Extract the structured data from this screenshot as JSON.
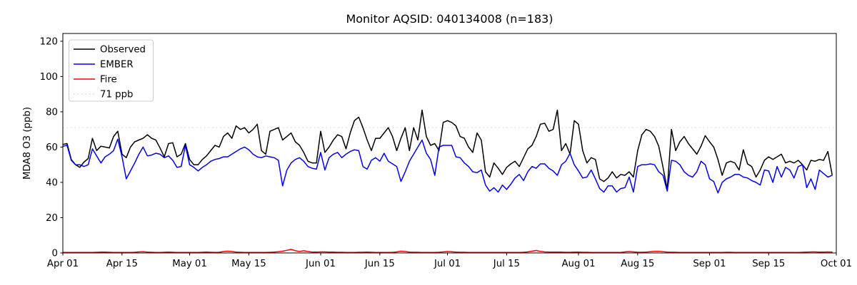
{
  "chart_data": {
    "type": "line",
    "title": "Monitor AQSID: 040134008 (n=183)",
    "xlabel": "",
    "ylabel": "MDA8 O3 (ppb)",
    "n_points": 183,
    "x_range_labels": [
      "Apr 01",
      "Oct 01"
    ],
    "ylim": [
      0,
      124.4
    ],
    "yticks": [
      0,
      20,
      40,
      60,
      80,
      100,
      120
    ],
    "xticks": [
      {
        "day": 1,
        "label": "Apr 01"
      },
      {
        "day": 15,
        "label": "Apr 15"
      },
      {
        "day": 31,
        "label": "May 01"
      },
      {
        "day": 45,
        "label": "May 15"
      },
      {
        "day": 62,
        "label": "Jun 01"
      },
      {
        "day": 76,
        "label": "Jun 15"
      },
      {
        "day": 92,
        "label": "Jul 01"
      },
      {
        "day": 106,
        "label": "Jul 15"
      },
      {
        "day": 123,
        "label": "Aug 01"
      },
      {
        "day": 137,
        "label": "Aug 15"
      },
      {
        "day": 154,
        "label": "Sep 01"
      },
      {
        "day": 168,
        "label": "Sep 15"
      },
      {
        "day": 184,
        "label": "Oct 01"
      }
    ],
    "grid": false,
    "legend_position": "upper left",
    "threshold": {
      "label": "71 ppb",
      "value": 71,
      "color": "#d3d3d3",
      "style": "dotted"
    },
    "series": [
      {
        "name": "Observed",
        "color": "#000000",
        "values": [
          61.5,
          62,
          53,
          50,
          48.5,
          51.5,
          53.5,
          65,
          58,
          60.5,
          60,
          59.5,
          66,
          69,
          56,
          54,
          60,
          63,
          64,
          65,
          67,
          65,
          64,
          59.5,
          54.5,
          62,
          62.5,
          54.5,
          56,
          62,
          53,
          50,
          50,
          53,
          55,
          58,
          61,
          60,
          66,
          68,
          65,
          72,
          70,
          71,
          68,
          70,
          73,
          58,
          56,
          69,
          70,
          71,
          64,
          66,
          68,
          63,
          61,
          57,
          52,
          51,
          51,
          69,
          57,
          60,
          64,
          67,
          66,
          59,
          68,
          75,
          77,
          71,
          64,
          58,
          65,
          65,
          68,
          71,
          66,
          58,
          65,
          71,
          58,
          71,
          64,
          81,
          66,
          61,
          62,
          58,
          74,
          75,
          74,
          72,
          66,
          65,
          60,
          57,
          68,
          64,
          46,
          43,
          51,
          48,
          44.5,
          48.5,
          50.5,
          52,
          49,
          54,
          59,
          61,
          66,
          73,
          73.5,
          69,
          70,
          81,
          58,
          62,
          56,
          75,
          73,
          58,
          51,
          54,
          53,
          42,
          40.5,
          42.5,
          46,
          42.5,
          44.5,
          44,
          46,
          43,
          58,
          67,
          70,
          69,
          66,
          60.5,
          48.5,
          36,
          70,
          58,
          63,
          66,
          62,
          59,
          56,
          60.5,
          66.5,
          63,
          60,
          53,
          44,
          51,
          52,
          51,
          47,
          58.5,
          50.5,
          49,
          43,
          47,
          52.5,
          54.5,
          53,
          54.5,
          56,
          51,
          52,
          51,
          52.5,
          50,
          47,
          52.5,
          52,
          53,
          52.5,
          57.5,
          44.5
        ]
      },
      {
        "name": "EMBER",
        "color": "#0000ff",
        "values": [
          60.5,
          61,
          52.5,
          50,
          50,
          49,
          50,
          59,
          55,
          51,
          54.5,
          56,
          58,
          64.5,
          54.5,
          42,
          46.5,
          51,
          56,
          60,
          55,
          55.5,
          56.5,
          56,
          54,
          55,
          52.5,
          48.5,
          49,
          61,
          50,
          48.5,
          46.5,
          48.5,
          50,
          52,
          53,
          53.5,
          54.5,
          54.5,
          56,
          57.5,
          59,
          60,
          58.5,
          56,
          54.5,
          54,
          55,
          54.5,
          54,
          52.5,
          38,
          47,
          51,
          53,
          54,
          52,
          49,
          48,
          47.5,
          57,
          47,
          54,
          56,
          57,
          54,
          56,
          57.5,
          58.5,
          58,
          49,
          47.5,
          52.5,
          54,
          52,
          56.5,
          52,
          50.5,
          49,
          40.5,
          46,
          52,
          56,
          60,
          64,
          56.5,
          53,
          44,
          60,
          61,
          61,
          61,
          54.5,
          54,
          51,
          49,
          46,
          45.5,
          47,
          38.5,
          35,
          37,
          34.5,
          38.5,
          36,
          39,
          42.5,
          44.5,
          41,
          46,
          49,
          48,
          50.5,
          50.5,
          48,
          46.5,
          44,
          50,
          52,
          56.5,
          50,
          46.5,
          42.5,
          43,
          47,
          42,
          36.5,
          34.5,
          38,
          38,
          34.5,
          36.5,
          37,
          43,
          34.5,
          49,
          50,
          50,
          50.5,
          50,
          46,
          44,
          35,
          52.5,
          52,
          50,
          46,
          44,
          43,
          46,
          52,
          50,
          42,
          40.5,
          34,
          40,
          42,
          43,
          44.5,
          44.5,
          43,
          42.5,
          41,
          40,
          38.5,
          47,
          46.5,
          40,
          49,
          43,
          48.5,
          47,
          42.5,
          49,
          50,
          37,
          42,
          36,
          47,
          45,
          43,
          44
        ]
      },
      {
        "name": "Fire",
        "color": "#ff0000",
        "values": [
          0.3,
          0.3,
          0.3,
          0.3,
          0.3,
          0.3,
          0.3,
          0.3,
          0.4,
          0.5,
          0.5,
          0.4,
          0.3,
          0.3,
          0.3,
          0.3,
          0.3,
          0.4,
          0.6,
          0.7,
          0.5,
          0.4,
          0.3,
          0.3,
          0.4,
          0.5,
          0.4,
          0.3,
          0.3,
          0.3,
          0.3,
          0.3,
          0.3,
          0.4,
          0.5,
          0.4,
          0.3,
          0.4,
          0.8,
          1.0,
          0.8,
          0.5,
          0.4,
          0.3,
          0.3,
          0.3,
          0.3,
          0.3,
          0.3,
          0.4,
          0.5,
          0.7,
          1.0,
          1.5,
          2.0,
          1.3,
          0.8,
          1.3,
          0.8,
          0.5,
          0.5,
          0.6,
          0.6,
          0.5,
          0.5,
          0.4,
          0.4,
          0.3,
          0.3,
          0.3,
          0.4,
          0.4,
          0.5,
          0.4,
          0.3,
          0.3,
          0.3,
          0.3,
          0.3,
          0.6,
          1.0,
          0.8,
          0.5,
          0.4,
          0.4,
          0.3,
          0.3,
          0.3,
          0.3,
          0.4,
          0.6,
          0.8,
          0.7,
          0.5,
          0.4,
          0.4,
          0.3,
          0.3,
          0.3,
          0.3,
          0.3,
          0.3,
          0.3,
          0.3,
          0.3,
          0.3,
          0.3,
          0.3,
          0.3,
          0.4,
          0.6,
          1.0,
          1.4,
          0.9,
          0.6,
          0.5,
          0.5,
          0.5,
          0.5,
          0.4,
          0.4,
          0.5,
          0.5,
          0.4,
          0.4,
          0.3,
          0.3,
          0.3,
          0.3,
          0.3,
          0.3,
          0.3,
          0.3,
          0.6,
          0.8,
          0.6,
          0.4,
          0.4,
          0.5,
          0.7,
          0.9,
          0.9,
          0.7,
          0.5,
          0.4,
          0.4,
          0.3,
          0.3,
          0.3,
          0.3,
          0.3,
          0.3,
          0.3,
          0.3,
          0.3,
          0.3,
          0.3,
          0.4,
          0.4,
          0.3,
          0.3,
          0.3,
          0.3,
          0.3,
          0.3,
          0.3,
          0.3,
          0.3,
          0.3,
          0.3,
          0.3,
          0.3,
          0.3,
          0.3,
          0.3,
          0.4,
          0.5,
          0.6,
          0.6,
          0.5,
          0.5,
          0.6,
          0.5
        ]
      }
    ]
  }
}
